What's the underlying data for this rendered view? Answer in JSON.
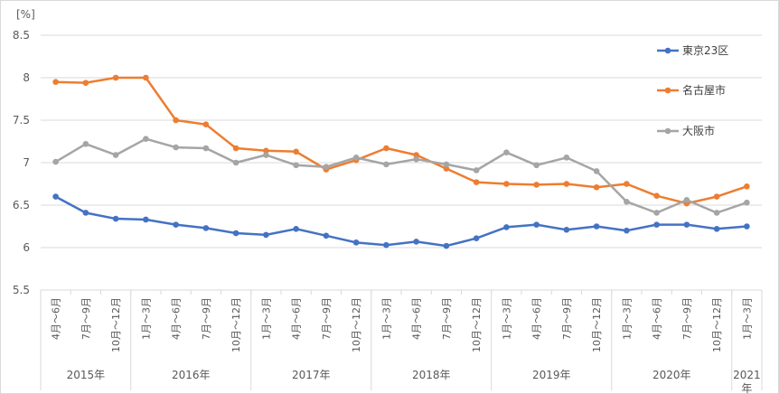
{
  "chart_data": {
    "type": "line",
    "unit_label": "[%]",
    "ylim": [
      5.5,
      8.5
    ],
    "yticks": [
      "5.5",
      "6",
      "6.5",
      "7",
      "7.5",
      "8",
      "8.5"
    ],
    "grid": "horizontal",
    "legend_position": "right",
    "categories": [
      "4月～6月",
      "7月～9月",
      "10月～12月",
      "1月～3月",
      "4月～6月",
      "7月～9月",
      "10月～12月",
      "1月～3月",
      "4月～6月",
      "7月～9月",
      "10月～12月",
      "1月～3月",
      "4月～6月",
      "7月～9月",
      "10月～12月",
      "1月～3月",
      "4月～6月",
      "7月～9月",
      "10月～12月",
      "1月～3月",
      "4月～6月",
      "7月～9月",
      "10月～12月",
      "1月～3月"
    ],
    "groups": [
      {
        "label": "2015年",
        "count": 3
      },
      {
        "label": "2016年",
        "count": 4
      },
      {
        "label": "2017年",
        "count": 4
      },
      {
        "label": "2018年",
        "count": 4
      },
      {
        "label": "2019年",
        "count": 4
      },
      {
        "label": "2020年",
        "count": 4
      },
      {
        "label": "2021年",
        "count": 1
      }
    ],
    "series": [
      {
        "name": "東京23区",
        "color": "#4472c4",
        "values": [
          6.6,
          6.41,
          6.34,
          6.33,
          6.27,
          6.23,
          6.17,
          6.15,
          6.22,
          6.14,
          6.06,
          6.03,
          6.07,
          6.02,
          6.11,
          6.24,
          6.27,
          6.21,
          6.25,
          6.2,
          6.27,
          6.27,
          6.22,
          6.25
        ]
      },
      {
        "name": "名古屋市",
        "color": "#ed7d31",
        "values": [
          7.95,
          7.94,
          8.0,
          8.0,
          7.5,
          7.45,
          7.17,
          7.14,
          7.13,
          6.92,
          7.03,
          7.17,
          7.09,
          6.93,
          6.77,
          6.75,
          6.74,
          6.75,
          6.71,
          6.75,
          6.61,
          6.52,
          6.6,
          6.72
        ]
      },
      {
        "name": "大阪市",
        "color": "#a5a5a5",
        "values": [
          7.01,
          7.22,
          7.09,
          7.28,
          7.18,
          7.17,
          7.0,
          7.09,
          6.97,
          6.95,
          7.06,
          6.98,
          7.04,
          6.98,
          6.91,
          7.12,
          6.97,
          7.06,
          6.9,
          6.54,
          6.41,
          6.56,
          6.41,
          6.53
        ]
      }
    ]
  }
}
